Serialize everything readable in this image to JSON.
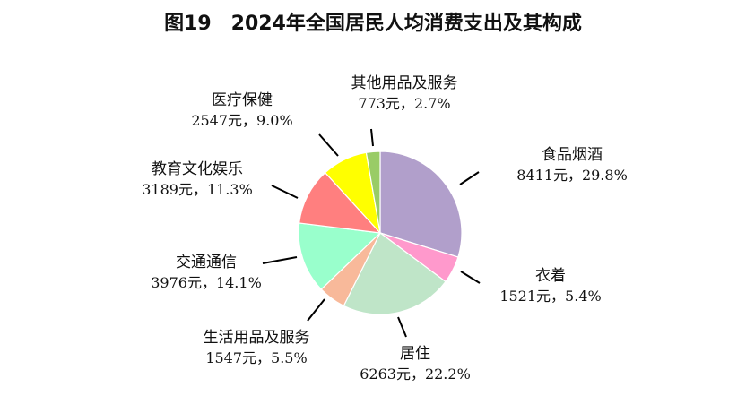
{
  "chart_data": {
    "type": "pie",
    "title": "图19　2024年全国居民人均消费支出及其构成",
    "slices": [
      {
        "name": "食品烟酒",
        "value": 8411,
        "percent": 29.8,
        "value_label": "8411元，29.8%",
        "color": "#B19FCB"
      },
      {
        "name": "衣着",
        "value": 1521,
        "percent": 5.4,
        "value_label": "1521元，5.4%",
        "color": "#FF99CC"
      },
      {
        "name": "居住",
        "value": 6263,
        "percent": 22.2,
        "value_label": "6263元，22.2%",
        "color": "#BFE5C8"
      },
      {
        "name": "生活用品及服务",
        "value": 1547,
        "percent": 5.5,
        "value_label": "1547元，5.5%",
        "color": "#F8B99A"
      },
      {
        "name": "交通通信",
        "value": 3976,
        "percent": 14.1,
        "value_label": "3976元，14.1%",
        "color": "#99FFCC"
      },
      {
        "name": "教育文化娱乐",
        "value": 3189,
        "percent": 11.3,
        "value_label": "3189元，11.3%",
        "color": "#FF7F7F"
      },
      {
        "name": "医疗保健",
        "value": 2547,
        "percent": 9.0,
        "value_label": "2547元，9.0%",
        "color": "#FFFF00"
      },
      {
        "name": "其他用品及服务",
        "value": 773,
        "percent": 2.7,
        "value_label": "773元，2.7%",
        "color": "#99CC66"
      }
    ]
  }
}
